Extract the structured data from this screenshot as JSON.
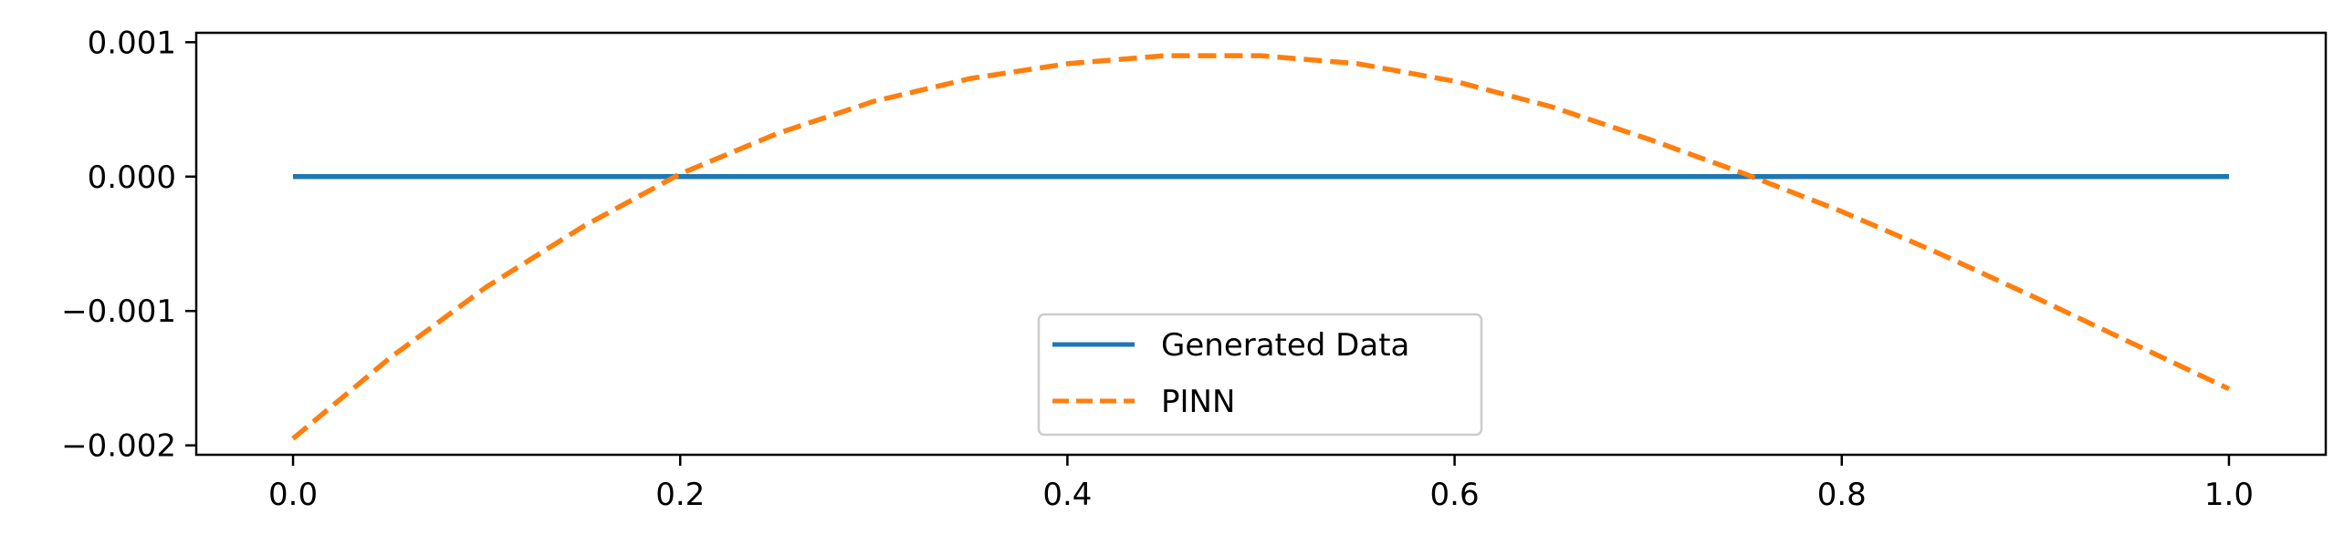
{
  "chart_data": {
    "type": "line",
    "title": "",
    "xlabel": "",
    "ylabel": "",
    "xlim": [
      -0.05,
      1.05
    ],
    "ylim": [
      -0.00207,
      0.00107
    ],
    "xticks": [
      0.0,
      0.2,
      0.4,
      0.6,
      0.8,
      1.0
    ],
    "xtick_labels": [
      "0.0",
      "0.2",
      "0.4",
      "0.6",
      "0.8",
      "1.0"
    ],
    "yticks": [
      0.001,
      0.0,
      -0.001,
      -0.002
    ],
    "ytick_labels": [
      "0.001",
      "0.000",
      "−0.001",
      "−0.002"
    ],
    "grid": false,
    "legend_position": "lower center",
    "x": [
      0.0,
      0.05,
      0.1,
      0.15,
      0.2,
      0.25,
      0.3,
      0.35,
      0.4,
      0.45,
      0.5,
      0.55,
      0.6,
      0.65,
      0.7,
      0.75,
      0.8,
      0.85,
      0.9,
      0.95,
      1.0
    ],
    "series": [
      {
        "name": "Generated Data",
        "color": "#1f77b4",
        "style": "solid",
        "values": [
          0,
          0,
          0,
          0,
          0,
          0,
          0,
          0,
          0,
          0,
          0,
          0,
          0,
          0,
          0,
          0,
          0,
          0,
          0,
          0,
          0
        ]
      },
      {
        "name": "PINN",
        "color": "#ff7f0e",
        "style": "dashed",
        "values": [
          -0.00195,
          -0.00135,
          -0.00082,
          -0.00037,
          2e-05,
          0.00032,
          0.00056,
          0.00073,
          0.00084,
          0.0009,
          0.0009,
          0.00084,
          0.00071,
          0.00052,
          0.00028,
          2e-05,
          -0.00026,
          -0.00057,
          -0.0009,
          -0.00124,
          -0.00158
        ]
      }
    ]
  }
}
